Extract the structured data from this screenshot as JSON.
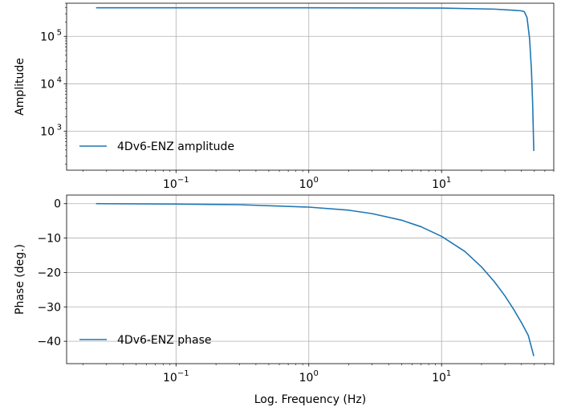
{
  "chart_data": [
    {
      "type": "line",
      "ylabel": "Amplitude",
      "xscale": "log",
      "yscale": "log",
      "xlim": [
        0.015,
        70
      ],
      "ylim": [
        150,
        500000
      ],
      "grid": true,
      "legend_position": "lower-left",
      "x_ticks": [
        {
          "value": 0.1,
          "base": "10",
          "exp": "−1"
        },
        {
          "value": 1,
          "base": "10",
          "exp": "0"
        },
        {
          "value": 10,
          "base": "10",
          "exp": "1"
        }
      ],
      "y_ticks": [
        {
          "value": 1000,
          "base": "10",
          "exp": "3"
        },
        {
          "value": 10000,
          "base": "10",
          "exp": "4"
        },
        {
          "value": 100000,
          "base": "10",
          "exp": "5"
        }
      ],
      "series": [
        {
          "name": "4Dv6-ENZ amplitude",
          "color": "#1f77b4",
          "points": [
            [
              0.025,
              400000
            ],
            [
              0.1,
              400000
            ],
            [
              1,
              400000
            ],
            [
              10,
              395000
            ],
            [
              25,
              375000
            ],
            [
              35,
              355000
            ],
            [
              40,
              345000
            ],
            [
              42,
              330000
            ],
            [
              44,
              250000
            ],
            [
              46,
              90000
            ],
            [
              47.5,
              20000
            ],
            [
              48.5,
              4000
            ],
            [
              49.5,
              380
            ]
          ]
        }
      ]
    },
    {
      "type": "line",
      "xlabel": "Log. Frequency (Hz)",
      "ylabel": "Phase (deg.)",
      "xscale": "log",
      "xlim": [
        0.015,
        70
      ],
      "ylim": [
        -46.5,
        2.5
      ],
      "grid": true,
      "legend_position": "lower-left",
      "x_ticks": [
        {
          "value": 0.1,
          "base": "10",
          "exp": "−1"
        },
        {
          "value": 1,
          "base": "10",
          "exp": "0"
        },
        {
          "value": 10,
          "base": "10",
          "exp": "1"
        }
      ],
      "y_ticks": [
        {
          "value": 0,
          "label": "0"
        },
        {
          "value": -10,
          "label": "−10"
        },
        {
          "value": -20,
          "label": "−20"
        },
        {
          "value": -30,
          "label": "−30"
        },
        {
          "value": -40,
          "label": "−40"
        }
      ],
      "series": [
        {
          "name": "4Dv6-ENZ phase",
          "color": "#1f77b4",
          "points": [
            [
              0.025,
              0
            ],
            [
              0.1,
              -0.1
            ],
            [
              0.3,
              -0.3
            ],
            [
              1,
              -1.0
            ],
            [
              2,
              -1.9
            ],
            [
              3,
              -2.9
            ],
            [
              5,
              -4.8
            ],
            [
              7,
              -6.7
            ],
            [
              10,
              -9.5
            ],
            [
              15,
              -13.9
            ],
            [
              20,
              -18.4
            ],
            [
              25,
              -22.7
            ],
            [
              30,
              -26.8
            ],
            [
              35,
              -30.8
            ],
            [
              40,
              -34.6
            ],
            [
              45,
              -38.3
            ],
            [
              49.5,
              -44.3
            ]
          ]
        }
      ]
    }
  ]
}
